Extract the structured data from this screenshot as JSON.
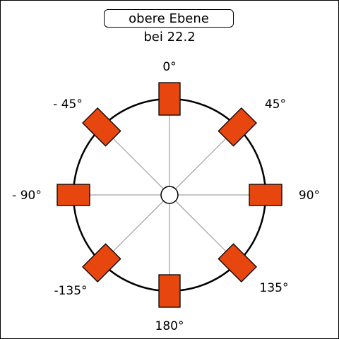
{
  "title": "obere Ebene",
  "subtitle": "bei 22.2",
  "colors": {
    "speaker_fill": "#e8460f",
    "stroke": "#000000",
    "spoke": "#8c8c8c",
    "background": "#ffffff"
  },
  "speakers": [
    {
      "angle": 0,
      "label": "0°"
    },
    {
      "angle": 45,
      "label": "45°"
    },
    {
      "angle": 90,
      "label": "90°"
    },
    {
      "angle": 135,
      "label": "135°"
    },
    {
      "angle": 180,
      "label": "180°"
    },
    {
      "angle": -135,
      "label": "-135°"
    },
    {
      "angle": -90,
      "label": "- 90°"
    },
    {
      "angle": -45,
      "label": "- 45°"
    }
  ]
}
